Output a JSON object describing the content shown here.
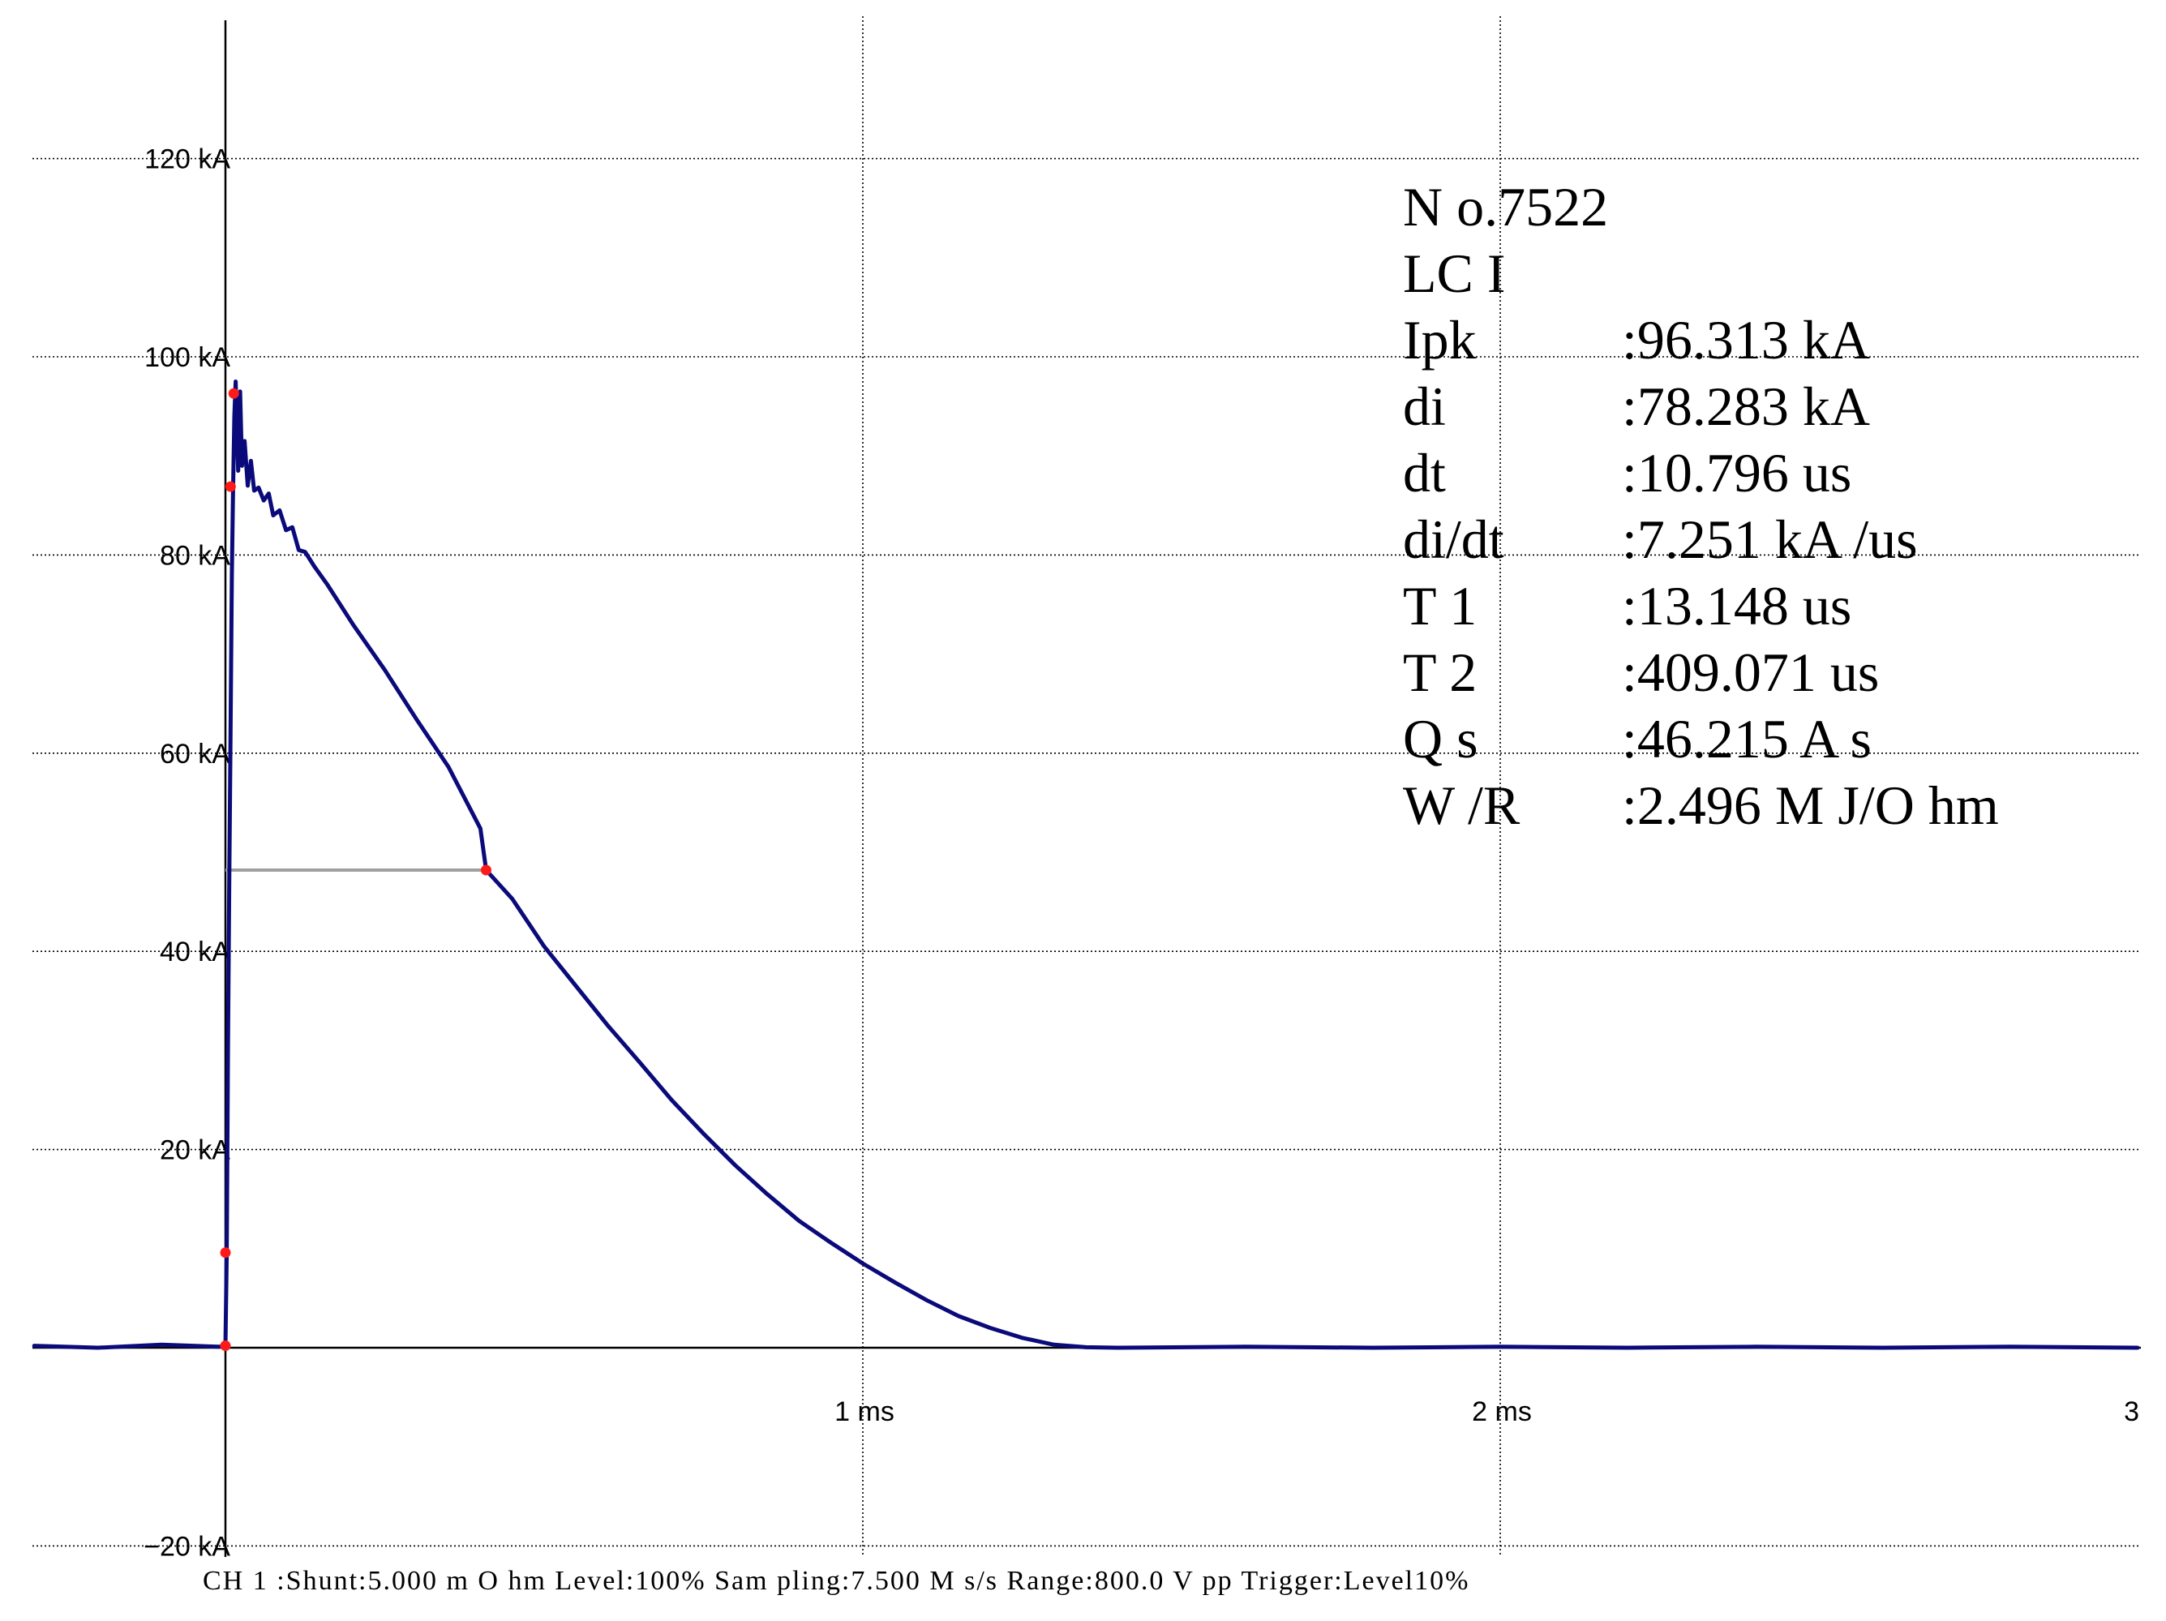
{
  "chart_data": {
    "type": "line",
    "x_unit": "ms",
    "y_unit": "kA",
    "xlim": [
      -0.3,
      3.0
    ],
    "ylim": [
      -20,
      133
    ],
    "y_ticks": [
      {
        "value": 120,
        "label": "120 kA"
      },
      {
        "value": 100,
        "label": "100 kA"
      },
      {
        "value": 80,
        "label": "80 kA"
      },
      {
        "value": 60,
        "label": "60 kA"
      },
      {
        "value": 40,
        "label": "40 kA"
      },
      {
        "value": 20,
        "label": "20 kA"
      },
      {
        "value": -20,
        "label": "−20 kA"
      }
    ],
    "x_ticks": [
      {
        "value": 1,
        "label": "1 ms"
      },
      {
        "value": 2,
        "label": "2 ms"
      },
      {
        "value": 3,
        "label": "3"
      }
    ],
    "series": [
      {
        "color": "#0a0a7a",
        "points": [
          [
            -0.3,
            0.2
          ],
          [
            -0.2,
            0.0
          ],
          [
            -0.1,
            0.3
          ],
          [
            -0.01,
            0.1
          ],
          [
            0.0,
            0.2
          ],
          [
            0.002,
            9.5
          ],
          [
            0.004,
            30
          ],
          [
            0.006,
            47
          ],
          [
            0.008,
            62
          ],
          [
            0.01,
            78
          ],
          [
            0.012,
            86.5
          ],
          [
            0.014,
            94
          ],
          [
            0.016,
            97.5
          ],
          [
            0.018,
            93
          ],
          [
            0.02,
            88.5
          ],
          [
            0.023,
            96.5
          ],
          [
            0.026,
            89
          ],
          [
            0.03,
            91.5
          ],
          [
            0.035,
            87
          ],
          [
            0.04,
            89.5
          ],
          [
            0.045,
            86.5
          ],
          [
            0.052,
            86.8
          ],
          [
            0.06,
            85.5
          ],
          [
            0.068,
            86.2
          ],
          [
            0.075,
            84
          ],
          [
            0.085,
            84.5
          ],
          [
            0.095,
            82.5
          ],
          [
            0.105,
            82.8
          ],
          [
            0.115,
            80.5
          ],
          [
            0.125,
            80.3
          ],
          [
            0.14,
            78.8
          ],
          [
            0.16,
            77
          ],
          [
            0.18,
            75
          ],
          [
            0.2,
            73
          ],
          [
            0.25,
            68.4
          ],
          [
            0.3,
            63.4
          ],
          [
            0.35,
            58.6
          ],
          [
            0.4,
            52.4
          ],
          [
            0.409,
            48.2
          ],
          [
            0.45,
            45.3
          ],
          [
            0.5,
            40.5
          ],
          [
            0.55,
            36.5
          ],
          [
            0.6,
            32.5
          ],
          [
            0.65,
            28.8
          ],
          [
            0.7,
            25.0
          ],
          [
            0.75,
            21.6
          ],
          [
            0.8,
            18.4
          ],
          [
            0.85,
            15.5
          ],
          [
            0.9,
            12.8
          ],
          [
            0.95,
            10.6
          ],
          [
            1.0,
            8.5
          ],
          [
            1.05,
            6.6
          ],
          [
            1.1,
            4.8
          ],
          [
            1.15,
            3.2
          ],
          [
            1.2,
            2.0
          ],
          [
            1.25,
            1.0
          ],
          [
            1.3,
            0.3
          ],
          [
            1.35,
            0.05
          ],
          [
            1.4,
            0.0
          ],
          [
            1.6,
            0.1
          ],
          [
            1.8,
            0.0
          ],
          [
            2.0,
            0.1
          ],
          [
            2.2,
            0.0
          ],
          [
            2.4,
            0.1
          ],
          [
            2.6,
            0.0
          ],
          [
            2.8,
            0.1
          ],
          [
            3.0,
            0.0
          ]
        ]
      }
    ],
    "markers": [
      [
        0.0,
        0.2
      ],
      [
        0.0,
        9.6
      ],
      [
        0.008,
        86.9
      ],
      [
        0.013,
        96.3
      ],
      [
        0.409,
        48.2
      ]
    ],
    "t2_level_line": {
      "x_start": 0.0,
      "x_end": 0.409,
      "y": 48.2
    },
    "grid": true
  },
  "info": {
    "title": "N o.7522",
    "mode": "LC I",
    "rows": [
      {
        "label": "Ipk",
        "value": ":96.313 kA"
      },
      {
        "label": "di",
        "value": ":78.283 kA"
      },
      {
        "label": "dt",
        "value": ":10.796 us"
      },
      {
        "label": "di/dt",
        "value": ":7.251 kA /us"
      },
      {
        "label": "T 1",
        "value": ":13.148 us"
      },
      {
        "label": "T 2",
        "value": ":409.071 us"
      },
      {
        "label": "Q s",
        "value": ":46.215 A s"
      },
      {
        "label": "W /R",
        "value": ":2.496 M J/O hm"
      }
    ]
  },
  "footer": "CH 1 :Shunt:5.000 m O hm  Level:100%  Sam pling:7.500 M s/s  Range:800.0 V pp  Trigger:Level10%"
}
